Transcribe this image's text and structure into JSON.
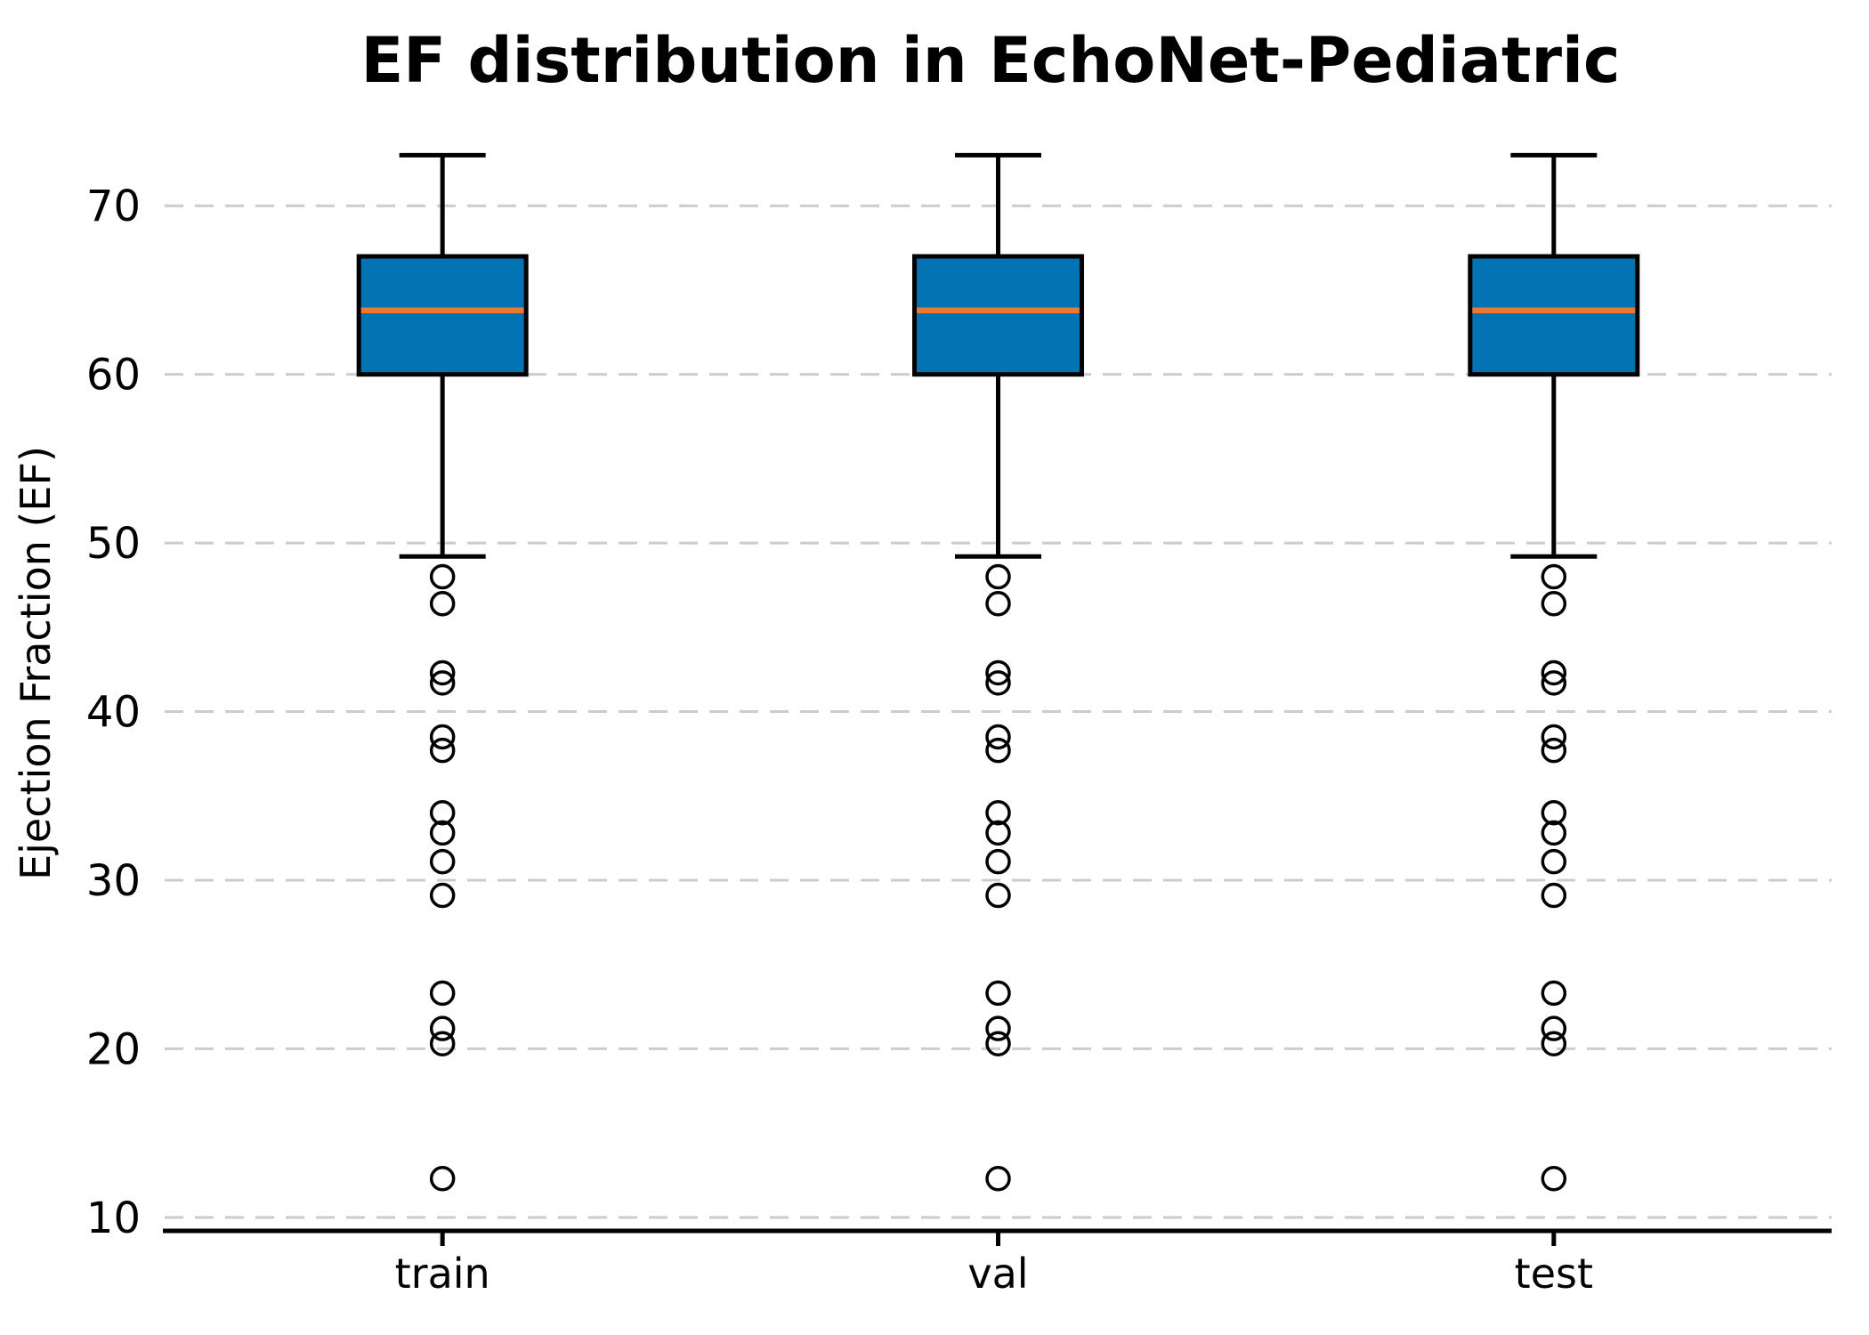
{
  "chart_data": {
    "type": "box",
    "title": "EF distribution in EchoNet-Pediatric",
    "xlabel": "",
    "ylabel": "Ejection Fraction (EF)",
    "categories": [
      "train",
      "val",
      "test"
    ],
    "yticks": [
      10,
      20,
      30,
      40,
      50,
      60,
      70
    ],
    "ylim": [
      9.2,
      76.4
    ],
    "grid": "horizontal-dashed",
    "legend": "none",
    "series": [
      {
        "name": "train",
        "whisker_low": 49.2,
        "q1": 60.0,
        "median": 63.8,
        "q3": 67.0,
        "whisker_high": 73.0,
        "outliers": [
          48.0,
          46.4,
          42.3,
          41.7,
          38.5,
          37.7,
          34.0,
          32.8,
          31.1,
          29.1,
          23.3,
          21.2,
          20.3,
          12.3
        ]
      },
      {
        "name": "val",
        "whisker_low": 49.2,
        "q1": 60.0,
        "median": 63.8,
        "q3": 67.0,
        "whisker_high": 73.0,
        "outliers": [
          48.0,
          46.4,
          42.3,
          41.7,
          38.5,
          37.7,
          34.0,
          32.8,
          31.1,
          29.1,
          23.3,
          21.2,
          20.3,
          12.3
        ]
      },
      {
        "name": "test",
        "whisker_low": 49.2,
        "q1": 60.0,
        "median": 63.8,
        "q3": 67.0,
        "whisker_high": 73.0,
        "outliers": [
          48.0,
          46.4,
          42.3,
          41.7,
          38.5,
          37.7,
          34.0,
          32.8,
          31.1,
          29.1,
          23.3,
          21.2,
          20.3,
          12.3
        ]
      }
    ],
    "colors": {
      "box_fill": "#0473b4",
      "box_edge": "#000000",
      "median_line": "#f0762c",
      "whisker": "#000000",
      "outlier_edge": "#000000",
      "gridline": "#cccccc",
      "axis_line": "#000000"
    }
  }
}
